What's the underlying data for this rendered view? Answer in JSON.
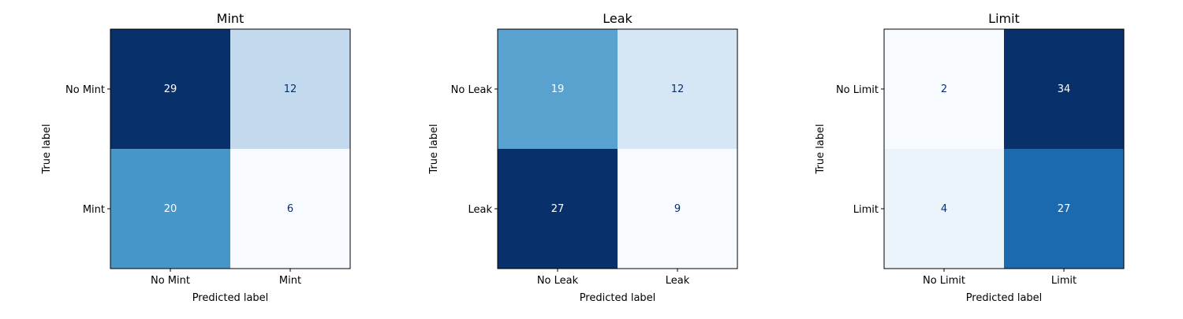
{
  "chart_data": [
    {
      "type": "heatmap",
      "title": "Mint",
      "xlabel": "Predicted label",
      "ylabel": "True label",
      "x_categories": [
        "No Mint",
        "Mint"
      ],
      "y_categories": [
        "No Mint",
        "Mint"
      ],
      "values": [
        [
          29,
          12
        ],
        [
          20,
          6
        ]
      ],
      "colormap": "Blues"
    },
    {
      "type": "heatmap",
      "title": "Leak",
      "xlabel": "Predicted label",
      "ylabel": "True label",
      "x_categories": [
        "No Leak",
        "Leak"
      ],
      "y_categories": [
        "No Leak",
        "Leak"
      ],
      "values": [
        [
          19,
          12
        ],
        [
          27,
          9
        ]
      ],
      "colormap": "Blues"
    },
    {
      "type": "heatmap",
      "title": "Limit",
      "xlabel": "Predicted label",
      "ylabel": "True label",
      "x_categories": [
        "No Limit",
        "Limit"
      ],
      "y_categories": [
        "No Limit",
        "Limit"
      ],
      "values": [
        [
          2,
          34
        ],
        [
          4,
          27
        ]
      ],
      "colormap": "Blues"
    }
  ]
}
